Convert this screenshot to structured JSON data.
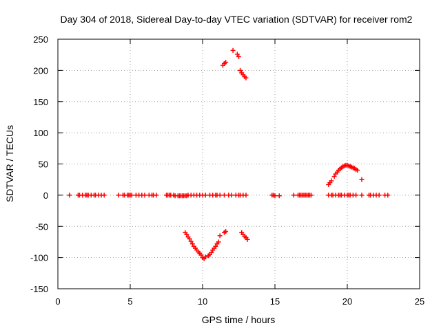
{
  "chart_data": {
    "type": "scatter",
    "title": "Day 304 of 2018, Sidereal Day-to-day VTEC variation (SDTVAR) for receiver rom2",
    "xlabel": "GPS time / hours",
    "ylabel": "SDTVAR / TECUs",
    "xlim": [
      0,
      25
    ],
    "ylim": [
      -150,
      250
    ],
    "xticks": [
      0,
      5,
      10,
      15,
      20,
      25
    ],
    "yticks": [
      -150,
      -100,
      -50,
      0,
      50,
      100,
      150,
      200,
      250
    ],
    "grid": true,
    "marker": "+",
    "color": "#ff0000",
    "series": [
      {
        "name": "SDTVAR",
        "x": [
          0.8,
          1.4,
          1.5,
          1.7,
          1.9,
          2.0,
          2.1,
          2.3,
          2.5,
          2.6,
          2.8,
          3.0,
          3.2,
          4.2,
          4.5,
          4.6,
          4.8,
          4.9,
          5.0,
          5.1,
          5.4,
          5.6,
          5.8,
          6.0,
          6.3,
          6.5,
          6.6,
          6.8,
          7.5,
          7.6,
          7.7,
          7.8,
          8.0,
          8.1,
          8.3,
          8.4,
          8.5,
          8.6,
          8.7,
          8.8,
          8.9,
          9.0,
          9.2,
          9.4,
          9.6,
          9.8,
          10.0,
          10.2,
          10.5,
          10.7,
          10.9,
          11.0,
          11.2,
          11.5,
          11.8,
          12.0,
          12.3,
          12.5,
          12.6,
          12.8,
          13.0,
          8.8,
          8.9,
          9.0,
          9.1,
          9.2,
          9.3,
          9.4,
          9.5,
          9.6,
          9.7,
          9.8,
          9.9,
          10.0,
          10.1,
          10.2,
          10.4,
          10.5,
          10.6,
          10.7,
          10.8,
          10.9,
          11.0,
          11.1,
          11.2,
          11.5,
          11.6,
          12.7,
          12.8,
          12.9,
          13.0,
          13.1,
          11.4,
          11.5,
          11.6,
          12.1,
          12.4,
          12.5,
          12.6,
          12.7,
          12.8,
          12.9,
          13.0,
          14.8,
          14.9,
          15.0,
          15.3,
          16.3,
          16.6,
          16.7,
          16.8,
          16.9,
          17.0,
          17.1,
          17.2,
          17.3,
          17.4,
          17.5,
          18.7,
          18.9,
          19.0,
          19.2,
          19.4,
          19.5,
          19.6,
          19.8,
          20.0,
          20.1,
          20.2,
          20.4,
          20.6,
          21.0,
          21.5,
          21.6,
          21.8,
          22.0,
          22.2,
          22.6,
          22.8,
          18.7,
          18.8,
          18.9,
          19.1,
          19.2,
          19.3,
          19.4,
          19.5,
          19.6,
          19.7,
          19.8,
          19.9,
          20.0,
          20.1,
          20.2,
          20.3,
          20.4,
          20.5,
          20.6,
          20.7,
          21.0
        ],
        "y": [
          0,
          0,
          0,
          0,
          0,
          0,
          0,
          0,
          0,
          0,
          0,
          0,
          0,
          0,
          0,
          0,
          0,
          0,
          0,
          0,
          0,
          0,
          0,
          0,
          0,
          0,
          0,
          0,
          0,
          0,
          0,
          0,
          0,
          -1,
          -1,
          -1,
          -1,
          -1,
          -1,
          -1,
          -1,
          0,
          0,
          0,
          0,
          0,
          0,
          0,
          0,
          0,
          0,
          0,
          0,
          0,
          0,
          0,
          0,
          0,
          0,
          0,
          0,
          -60,
          -63,
          -67,
          -70,
          -74,
          -78,
          -82,
          -85,
          -88,
          -91,
          -93,
          -96,
          -100,
          -102,
          -99,
          -97,
          -95,
          -92,
          -88,
          -85,
          -82,
          -78,
          -75,
          -65,
          -60,
          -58,
          -60,
          -63,
          -66,
          -68,
          -71,
          208,
          211,
          213,
          232,
          226,
          222,
          200,
          196,
          193,
          190,
          188,
          0,
          0,
          -1,
          -1,
          0,
          0,
          0,
          0,
          0,
          0,
          0,
          0,
          0,
          0,
          0,
          0,
          0,
          0,
          0,
          0,
          0,
          0,
          0,
          0,
          0,
          0,
          0,
          0,
          0,
          0,
          0,
          0,
          0,
          0,
          0,
          0,
          17,
          20,
          23,
          30,
          34,
          37,
          40,
          42,
          44,
          46,
          47,
          48,
          48,
          47,
          46,
          45,
          44,
          43,
          41,
          40,
          25
        ]
      }
    ]
  }
}
